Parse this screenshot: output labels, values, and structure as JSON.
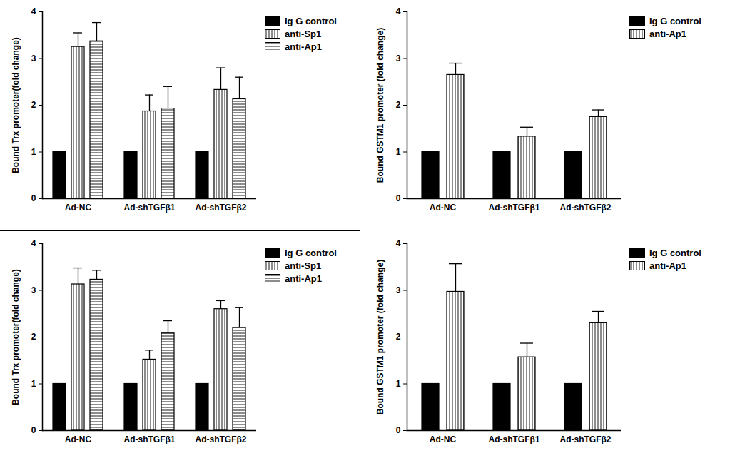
{
  "chart_data": [
    {
      "type": "bar",
      "ylabel": "Bound Trx promoter(fold change)",
      "categories": [
        "Ad-NC",
        "Ad-shTGFβ1",
        "Ad-shTGFβ2"
      ],
      "series": [
        {
          "name": "Ig G control",
          "color": "#000000",
          "values": [
            1,
            1,
            1
          ]
        },
        {
          "name": "anti-Sp1",
          "color": "#ffffff",
          "values": [
            3.25,
            1.87,
            2.33
          ],
          "errors": [
            0.3,
            0.35,
            0.47
          ]
        },
        {
          "name": "anti-Ap1",
          "color": "#ffffff",
          "values": [
            3.37,
            1.93,
            2.13
          ],
          "errors": [
            0.4,
            0.47,
            0.47
          ]
        }
      ],
      "ylim": [
        0,
        4
      ],
      "yticks": [
        0,
        1,
        2,
        3,
        4
      ],
      "legend": "right"
    },
    {
      "type": "bar",
      "ylabel": "Bound GSTM1 promoter (fold change)",
      "categories": [
        "Ad-NC",
        "Ad-shTGFβ1",
        "Ad-shTGFβ2"
      ],
      "series": [
        {
          "name": "Ig G control",
          "color": "#000000",
          "values": [
            1,
            1,
            1
          ]
        },
        {
          "name": "anti-Ap1",
          "color": "#ffffff",
          "values": [
            2.65,
            1.33,
            1.75
          ],
          "errors": [
            0.25,
            0.2,
            0.15
          ]
        }
      ],
      "ylim": [
        0,
        4
      ],
      "yticks": [
        0,
        1,
        2,
        3,
        4
      ],
      "legend": "right"
    },
    {
      "type": "bar",
      "ylabel": "Bound Trx promoter(fold change)",
      "categories": [
        "Ad-NC",
        "Ad-shTGFβ1",
        "Ad-shTGFβ2"
      ],
      "series": [
        {
          "name": "Ig G control",
          "color": "#000000",
          "values": [
            1,
            1,
            1
          ]
        },
        {
          "name": "anti-Sp1",
          "color": "#ffffff",
          "values": [
            3.13,
            1.52,
            2.6
          ],
          "errors": [
            0.35,
            0.2,
            0.18
          ]
        },
        {
          "name": "anti-Ap1",
          "color": "#ffffff",
          "values": [
            3.23,
            2.08,
            2.2
          ],
          "errors": [
            0.2,
            0.27,
            0.43
          ]
        }
      ],
      "ylim": [
        0,
        4
      ],
      "yticks": [
        0,
        1,
        2,
        3,
        4
      ],
      "legend": "right"
    },
    {
      "type": "bar",
      "ylabel": "Bound GSTM1 promoter (fold change)",
      "categories": [
        "Ad-NC",
        "Ad-shTGFβ1",
        "Ad-shTGFβ2"
      ],
      "series": [
        {
          "name": "Ig G control",
          "color": "#000000",
          "values": [
            1,
            1,
            1
          ]
        },
        {
          "name": "anti-Ap1",
          "color": "#ffffff",
          "values": [
            2.97,
            1.57,
            2.3
          ],
          "errors": [
            0.6,
            0.3,
            0.25
          ]
        }
      ],
      "ylim": [
        0,
        4
      ],
      "yticks": [
        0,
        1,
        2,
        3,
        4
      ],
      "legend": "right"
    }
  ]
}
